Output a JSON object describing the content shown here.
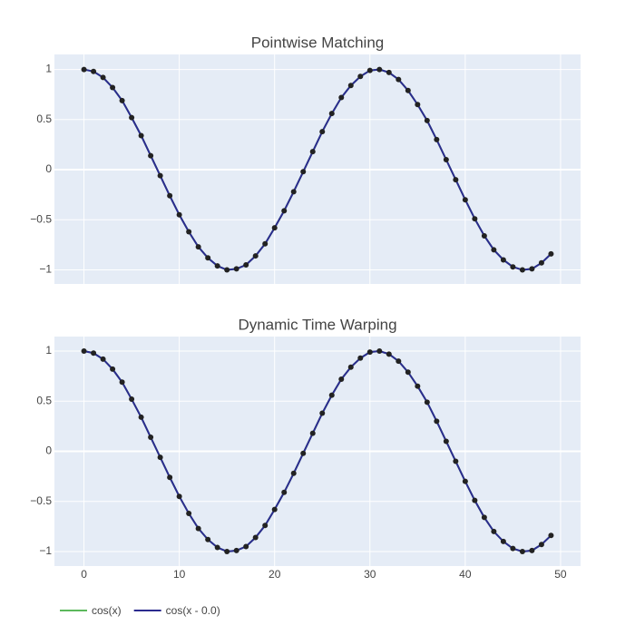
{
  "chart_data": [
    {
      "type": "line",
      "title": "Pointwise Matching",
      "x": [
        0,
        1,
        2,
        3,
        4,
        5,
        6,
        7,
        8,
        9,
        10,
        11,
        12,
        13,
        14,
        15,
        16,
        17,
        18,
        19,
        20,
        21,
        22,
        23,
        24,
        25,
        26,
        27,
        28,
        29,
        30,
        31,
        32,
        33,
        34,
        35,
        36,
        37,
        38,
        39,
        40,
        41,
        42,
        43,
        44,
        45,
        46,
        47,
        48,
        49
      ],
      "series": [
        {
          "color": "#5cb85c",
          "values": [
            1.0,
            0.98,
            0.92,
            0.82,
            0.69,
            0.52,
            0.34,
            0.14,
            -0.06,
            -0.26,
            -0.45,
            -0.62,
            -0.77,
            -0.88,
            -0.96,
            -1.0,
            -0.99,
            -0.95,
            -0.86,
            -0.74,
            -0.58,
            -0.41,
            -0.22,
            -0.02,
            0.18,
            0.38,
            0.56,
            0.72,
            0.84,
            0.93,
            0.99,
            1.0,
            0.97,
            0.9,
            0.79,
            0.65,
            0.49,
            0.3,
            0.1,
            -0.1,
            -0.3,
            -0.49,
            -0.66,
            -0.8,
            -0.9,
            -0.97,
            -1.0,
            -0.99,
            -0.93,
            -0.84
          ]
        },
        {
          "color": "#2b2b8f",
          "markers": true,
          "values": [
            1.0,
            0.98,
            0.92,
            0.82,
            0.69,
            0.52,
            0.34,
            0.14,
            -0.06,
            -0.26,
            -0.45,
            -0.62,
            -0.77,
            -0.88,
            -0.96,
            -1.0,
            -0.99,
            -0.95,
            -0.86,
            -0.74,
            -0.58,
            -0.41,
            -0.22,
            -0.02,
            0.18,
            0.38,
            0.56,
            0.72,
            0.84,
            0.93,
            0.99,
            1.0,
            0.97,
            0.9,
            0.79,
            0.65,
            0.49,
            0.3,
            0.1,
            -0.1,
            -0.3,
            -0.49,
            -0.66,
            -0.8,
            -0.9,
            -0.97,
            -1.0,
            -0.99,
            -0.93,
            -0.84
          ]
        }
      ],
      "marker_color": "#222222",
      "xlim": [
        -3.1,
        52.1
      ],
      "xticks": [
        0,
        10,
        20,
        30,
        40,
        50
      ],
      "show_x_tick_labels": false,
      "ylim": [
        -1.14,
        1.15
      ],
      "yticks": [
        {
          "value": -1,
          "label": "−1"
        },
        {
          "value": -0.5,
          "label": "−0.5"
        },
        0,
        0.5,
        1
      ],
      "grid": true
    },
    {
      "type": "line",
      "title": "Dynamic Time Warping",
      "x": [
        0,
        1,
        2,
        3,
        4,
        5,
        6,
        7,
        8,
        9,
        10,
        11,
        12,
        13,
        14,
        15,
        16,
        17,
        18,
        19,
        20,
        21,
        22,
        23,
        24,
        25,
        26,
        27,
        28,
        29,
        30,
        31,
        32,
        33,
        34,
        35,
        36,
        37,
        38,
        39,
        40,
        41,
        42,
        43,
        44,
        45,
        46,
        47,
        48,
        49
      ],
      "series": [
        {
          "name": "cos(x)",
          "color": "#5cb85c",
          "values": [
            1.0,
            0.98,
            0.92,
            0.82,
            0.69,
            0.52,
            0.34,
            0.14,
            -0.06,
            -0.26,
            -0.45,
            -0.62,
            -0.77,
            -0.88,
            -0.96,
            -1.0,
            -0.99,
            -0.95,
            -0.86,
            -0.74,
            -0.58,
            -0.41,
            -0.22,
            -0.02,
            0.18,
            0.38,
            0.56,
            0.72,
            0.84,
            0.93,
            0.99,
            1.0,
            0.97,
            0.9,
            0.79,
            0.65,
            0.49,
            0.3,
            0.1,
            -0.1,
            -0.3,
            -0.49,
            -0.66,
            -0.8,
            -0.9,
            -0.97,
            -1.0,
            -0.99,
            -0.93,
            -0.84
          ]
        },
        {
          "name": "cos(x - 0.0)",
          "color": "#2b2b8f",
          "markers": true,
          "values": [
            1.0,
            0.98,
            0.92,
            0.82,
            0.69,
            0.52,
            0.34,
            0.14,
            -0.06,
            -0.26,
            -0.45,
            -0.62,
            -0.77,
            -0.88,
            -0.96,
            -1.0,
            -0.99,
            -0.95,
            -0.86,
            -0.74,
            -0.58,
            -0.41,
            -0.22,
            -0.02,
            0.18,
            0.38,
            0.56,
            0.72,
            0.84,
            0.93,
            0.99,
            1.0,
            0.97,
            0.9,
            0.79,
            0.65,
            0.49,
            0.3,
            0.1,
            -0.1,
            -0.3,
            -0.49,
            -0.66,
            -0.8,
            -0.9,
            -0.97,
            -1.0,
            -0.99,
            -0.93,
            -0.84
          ]
        }
      ],
      "marker_color": "#222222",
      "xlim": [
        -3.1,
        52.1
      ],
      "xticks": [
        0,
        10,
        20,
        30,
        40,
        50
      ],
      "show_x_tick_labels": true,
      "ylim": [
        -1.145,
        1.145
      ],
      "yticks": [
        {
          "value": -1,
          "label": "−1"
        },
        {
          "value": -0.5,
          "label": "−0.5"
        },
        0,
        0.5,
        1
      ],
      "grid": true
    }
  ]
}
